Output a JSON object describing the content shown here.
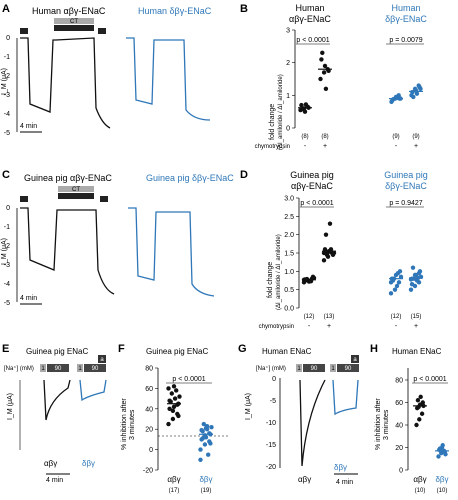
{
  "panels": {
    "A": {
      "letter": "A",
      "title_left": "Human αβγ-ENaC",
      "title_right": "Human δβγ-ENaC",
      "ct": "CT",
      "a_label": "a",
      "ylabel": "I_M (μA)",
      "scale": "4 min",
      "yticks": [
        "0",
        "-1",
        "-2",
        "-3",
        "-4",
        "-5"
      ]
    },
    "C": {
      "letter": "C",
      "title_left": "Guinea pig αβγ-ENaC",
      "title_right": "Guinea pig δβγ-ENaC",
      "ct": "CT",
      "a_label": "a",
      "ylabel": "I_M (μA)",
      "scale": "4 min",
      "yticks": [
        "0",
        "-1",
        "-2",
        "-3",
        "-4",
        "-5"
      ]
    },
    "B": {
      "letter": "B",
      "title_left_1": "Human",
      "title_left_2": "αβγ-ENaC",
      "title_right_1": "Human",
      "title_right_2": "δβγ-ENaC",
      "ylabel_1": "fold change",
      "ylabel_2": "(ΔI_amiloride / ΔI_amiloride)",
      "p_left": "p < 0.0001",
      "p_right": "p = 0.0079",
      "n_labels": [
        "(8)",
        "(8)",
        "(9)",
        "(9)"
      ],
      "chymo_label": "chymotrypsin",
      "signs": [
        "-",
        "+",
        "-",
        "+"
      ],
      "yticks": [
        "0",
        "1",
        "2",
        "3"
      ]
    },
    "D": {
      "letter": "D",
      "title_left_1": "Guinea pig",
      "title_left_2": "αβγ-ENaC",
      "title_right_1": "Guinea pig",
      "title_right_2": "δβγ-ENaC",
      "ylabel_1": "fold change",
      "ylabel_2": "(ΔI_amiloride / ΔI_amiloride)",
      "p_left": "p < 0.0001",
      "p_right": "p = 0.9427",
      "n_labels": [
        "(12)",
        "(13)",
        "(12)",
        "(15)"
      ],
      "chymo_label": "chymotrypsin",
      "signs": [
        "-",
        "+",
        "-",
        "+"
      ],
      "yticks": [
        "0.0",
        "0.5",
        "1.0",
        "1.5",
        "2.0",
        "2.5",
        "3.0"
      ]
    },
    "E": {
      "letter": "E",
      "title": "Guinea pig ENaC",
      "na_label": "[Na⁺] (mM)",
      "c1": "1",
      "c90": "90",
      "c1b": "1",
      "c90b": "90",
      "a_label": "a",
      "ylabel": "I_M (μA)",
      "xleft": "αβγ",
      "xright": "δβγ",
      "scale": "4 min"
    },
    "F": {
      "letter": "F",
      "title": "Guinea pig ENaC",
      "ylabel_1": "% inhibition after",
      "ylabel_2": "3 minutes",
      "p": "p < 0.0001",
      "cats": [
        "αβγ",
        "δβγ"
      ],
      "n_labels": [
        "(17)",
        "(19)"
      ],
      "yticks": [
        "-20",
        "0",
        "20",
        "40",
        "60",
        "80"
      ]
    },
    "G": {
      "letter": "G",
      "title": "Human ENaC",
      "na_label": "[Na⁺] (mM)",
      "c1": "1",
      "c90": "90",
      "c1b": "1",
      "c90b": "90",
      "a_label": "a",
      "ylabel": "I_M (μA)",
      "xleft": "αβγ",
      "xright": "δβγ",
      "scale": "4 min",
      "yticks": [
        "0",
        "-5",
        "-10",
        "-15",
        "-20"
      ]
    },
    "H": {
      "letter": "H",
      "title": "Human ENaC",
      "ylabel_1": "% inhibition after",
      "ylabel_2": "3 minutes",
      "p": "p < 0.0001",
      "cats": [
        "αβγ",
        "δβγ"
      ],
      "n_labels": [
        "(10)",
        "(10)"
      ],
      "yticks": [
        "0",
        "20",
        "40",
        "60",
        "80"
      ]
    }
  },
  "colors": {
    "abg": "#111111",
    "dbg": "#2f77b8",
    "bar": "#222222",
    "gray": "#aaaaaa"
  },
  "chart_data": [
    {
      "type": "scatter",
      "title": "Human ENaC fold change",
      "ylim": [
        0,
        3
      ],
      "series": [
        {
          "name": "Human αβγ-ENaC",
          "categories": [
            "-",
            "+"
          ],
          "points": [
            [
              0.55,
              0.6,
              0.65,
              0.7,
              0.5,
              0.62,
              0.58,
              0.72
            ],
            [
              1.5,
              1.7,
              1.8,
              2.1,
              1.9,
              1.75,
              2.3,
              1.2
            ]
          ],
          "means": [
            0.62,
            1.8
          ]
        },
        {
          "name": "Human δβγ-ENaC",
          "categories": [
            "-",
            "+"
          ],
          "points": [
            [
              0.8,
              0.9,
              1.0,
              0.85,
              0.95,
              0.9,
              0.88,
              0.92,
              0.9
            ],
            [
              1.0,
              1.2,
              1.3,
              1.1,
              1.15,
              1.25,
              0.95,
              1.05,
              1.2
            ]
          ],
          "means": [
            0.9,
            1.12
          ]
        }
      ]
    },
    {
      "type": "scatter",
      "title": "Guinea pig ENaC fold change",
      "ylim": [
        0,
        3
      ],
      "series": [
        {
          "name": "Guinea pig αβγ-ENaC",
          "categories": [
            "-",
            "+"
          ],
          "points": [
            [
              0.7,
              0.75,
              0.8,
              0.78,
              0.72,
              0.85,
              0.76,
              0.74,
              0.82,
              0.79,
              0.73,
              0.77
            ],
            [
              1.3,
              1.4,
              1.5,
              1.6,
              1.55,
              1.45,
              2.0,
              2.3,
              1.5,
              1.45,
              1.6,
              1.5,
              1.52
            ]
          ],
          "means": [
            0.77,
            1.55
          ]
        },
        {
          "name": "Guinea pig δβγ-ENaC",
          "categories": [
            "-",
            "+"
          ],
          "points": [
            [
              0.4,
              0.5,
              0.7,
              0.8,
              0.9,
              1.0,
              0.75,
              0.6,
              0.85,
              0.8,
              0.95,
              0.7
            ],
            [
              0.5,
              0.6,
              0.7,
              0.8,
              0.9,
              1.0,
              1.1,
              0.75,
              0.85,
              0.8,
              0.82,
              0.78,
              0.9,
              0.95,
              0.65
            ]
          ],
          "means": [
            0.8,
            0.82
          ]
        }
      ]
    },
    {
      "type": "scatter",
      "title": "Guinea pig ENaC % inhibition after 3 minutes",
      "ylim": [
        -20,
        80
      ],
      "categories": [
        "αβγ",
        "δβγ"
      ],
      "points": [
        [
          25,
          30,
          35,
          40,
          42,
          45,
          47,
          50,
          52,
          55,
          58,
          60,
          38,
          44,
          48,
          62,
          33
        ],
        [
          0,
          5,
          8,
          10,
          12,
          15,
          18,
          20,
          22,
          25,
          -5,
          -10,
          14,
          16,
          19,
          21,
          6,
          11,
          23
        ]
      ],
      "means": [
        45,
        15
      ]
    },
    {
      "type": "scatter",
      "title": "Human ENaC % inhibition after 3 minutes",
      "ylim": [
        0,
        80
      ],
      "categories": [
        "αβγ",
        "δβγ"
      ],
      "points": [
        [
          40,
          45,
          50,
          55,
          58,
          60,
          62,
          65,
          57,
          56
        ],
        [
          12,
          15,
          17,
          18,
          20,
          16,
          19,
          22,
          14,
          17
        ]
      ],
      "means": [
        57,
        17
      ]
    }
  ]
}
